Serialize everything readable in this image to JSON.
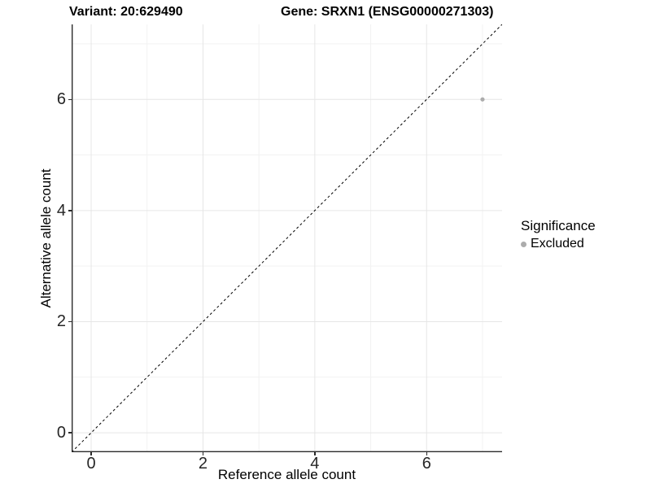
{
  "figure": {
    "titles": {
      "left": "Variant: 20:629490",
      "right": "Gene: SRXN1 (ENSG00000271303)"
    },
    "x_axis": {
      "label": "Reference allele count"
    },
    "y_axis": {
      "label": "Alternative allele count"
    },
    "legend": {
      "title": "Significance",
      "items": [
        {
          "label": "Excluded",
          "marker": "circle",
          "color": "#acacac"
        }
      ]
    }
  },
  "chart_data": {
    "type": "scatter",
    "title": "Variant: 20:629490 | Gene: SRXN1 (ENSG00000271303)",
    "xlabel": "Reference allele count",
    "ylabel": "Alternative allele count",
    "xlim": [
      -0.35,
      7.35
    ],
    "ylim": [
      -0.35,
      7.35
    ],
    "x_ticks": [
      0,
      2,
      4,
      6
    ],
    "y_ticks": [
      0,
      2,
      4,
      6
    ],
    "x_minor_ticks": [
      1,
      3,
      5,
      7
    ],
    "y_minor_ticks": [
      1,
      3,
      5,
      7
    ],
    "grid": true,
    "legend_position": "right",
    "series": [
      {
        "name": "Excluded",
        "color": "#acacac",
        "marker_size": 2.6,
        "points": [
          {
            "x": 7,
            "y": 6
          }
        ]
      }
    ],
    "reference_line": {
      "type": "identity",
      "equation": "y = x",
      "style": "dashed",
      "color": "#000000"
    }
  },
  "style": {
    "background": "#ffffff",
    "grid_major_color": "#e6e6e6",
    "grid_minor_color": "#f2f2f2",
    "axis_line_color": "#2b2b2b",
    "tick_color": "#2b2b2b",
    "tick_label_color": "#262626",
    "text_color": "#000000",
    "point_color": "#acacac"
  }
}
